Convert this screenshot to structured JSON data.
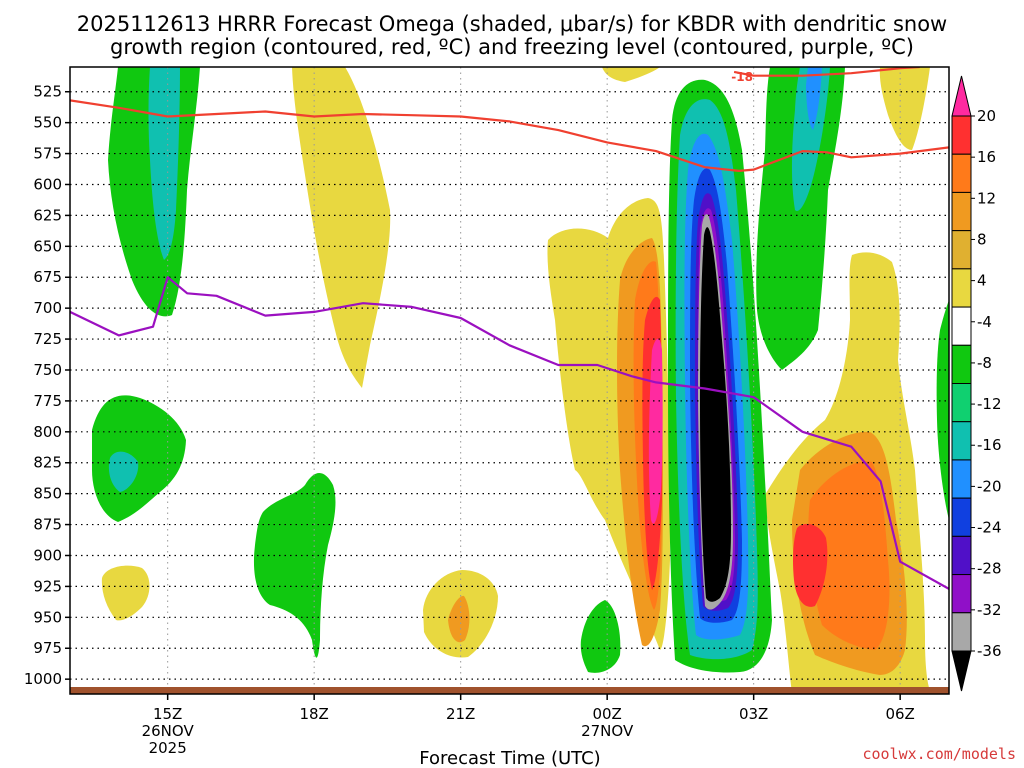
{
  "chart_data": {
    "type": "heatmap",
    "title_line1": "2025112613 HRRR Forecast Omega (shaded, μbar/s) for KBDR with dendritic snow",
    "title_line2": "growth region (contoured, red, ºC) and freezing level (contoured, purple, ºC)",
    "xlabel": "Forecast Time (UTC)",
    "credit": "coolwx.com/models",
    "x_ticks": [
      {
        "hour": 15,
        "label": "15Z",
        "date": "26NOV",
        "year": "2025"
      },
      {
        "hour": 18,
        "label": "18Z",
        "date": "",
        "year": ""
      },
      {
        "hour": 21,
        "label": "21Z",
        "date": "",
        "year": ""
      },
      {
        "hour": 24,
        "label": "00Z",
        "date": "27NOV",
        "year": ""
      },
      {
        "hour": 27,
        "label": "03Z",
        "date": "",
        "year": ""
      },
      {
        "hour": 30,
        "label": "06Z",
        "date": "",
        "year": ""
      }
    ],
    "x_range_hours": [
      13,
      31
    ],
    "y_levels": [
      525,
      550,
      575,
      600,
      625,
      650,
      675,
      700,
      725,
      750,
      775,
      800,
      825,
      850,
      875,
      900,
      925,
      950,
      975,
      1000
    ],
    "y_labels": [
      "525",
      "550",
      "575",
      "600",
      "625",
      "650",
      "675",
      "700",
      "725",
      "750",
      "775",
      "800",
      "825",
      "850",
      "875",
      "900",
      "925",
      "950",
      "975",
      "1000"
    ],
    "y_range_mb": [
      505,
      1012
    ],
    "colorbar": {
      "labels": [
        "20",
        "16",
        "12",
        "8",
        "4",
        "-4",
        "-8",
        "-12",
        "-16",
        "-20",
        "-24",
        "-28",
        "-32",
        "-36"
      ],
      "colors": [
        "#ff2aa0",
        "#ff3030",
        "#ff7a1a",
        "#f09a20",
        "#e0b030",
        "#e8d840",
        "#ffffff",
        "#10c810",
        "#10d070",
        "#10c0b0",
        "#2090ff",
        "#1040e0",
        "#5010c8",
        "#9010c8",
        "#a8a8a8",
        "#000000"
      ]
    },
    "series": [
      {
        "name": "freezing level (purple)",
        "color": "#9b10c0",
        "points": [
          [
            13.0,
            703
          ],
          [
            14.0,
            722
          ],
          [
            14.7,
            715
          ],
          [
            15.0,
            675
          ],
          [
            15.4,
            688
          ],
          [
            16.0,
            690
          ],
          [
            17.0,
            706
          ],
          [
            18.0,
            703
          ],
          [
            19.0,
            696
          ],
          [
            20.0,
            699
          ],
          [
            21.0,
            708
          ],
          [
            22.0,
            730
          ],
          [
            23.0,
            746
          ],
          [
            23.8,
            746
          ],
          [
            24.5,
            755
          ],
          [
            25.0,
            760
          ],
          [
            26.0,
            765
          ],
          [
            27.0,
            772
          ],
          [
            28.0,
            800
          ],
          [
            29.0,
            812
          ],
          [
            29.6,
            840
          ],
          [
            30.0,
            905
          ],
          [
            31.0,
            927
          ]
        ]
      },
      {
        "name": "-18 °C isotherm (red, DGZ upper)",
        "color": "#f04030",
        "label": "-18",
        "points": [
          [
            26.6,
            509
          ],
          [
            27.0,
            512
          ],
          [
            28.0,
            512
          ],
          [
            29.0,
            510
          ],
          [
            30.0,
            506
          ],
          [
            30.4,
            505
          ]
        ]
      },
      {
        "name": "-12 °C isotherm (red, DGZ lower)",
        "color": "#f04030",
        "points": [
          [
            13.0,
            532
          ],
          [
            14.0,
            538
          ],
          [
            15.0,
            545
          ],
          [
            16.0,
            543
          ],
          [
            17.0,
            541
          ],
          [
            18.0,
            545
          ],
          [
            19.0,
            543
          ],
          [
            20.0,
            544
          ],
          [
            21.0,
            545
          ],
          [
            22.0,
            549
          ],
          [
            23.0,
            556
          ],
          [
            24.0,
            566
          ],
          [
            25.0,
            573
          ],
          [
            26.0,
            586
          ],
          [
            26.7,
            589
          ],
          [
            27.0,
            588
          ],
          [
            28.0,
            573
          ],
          [
            28.5,
            574
          ],
          [
            29.0,
            578
          ],
          [
            30.0,
            575
          ],
          [
            31.0,
            570
          ]
        ]
      }
    ],
    "features": [
      {
        "kind": "ascent",
        "peak_value": "< -36",
        "center": [
          26.0,
          770
        ]
      },
      {
        "kind": "descent",
        "peak_value": "> 20",
        "center": [
          25.0,
          735
        ]
      },
      {
        "kind": "descent",
        "peak_value": "12-16",
        "center": [
          28.7,
          865
        ]
      }
    ]
  }
}
